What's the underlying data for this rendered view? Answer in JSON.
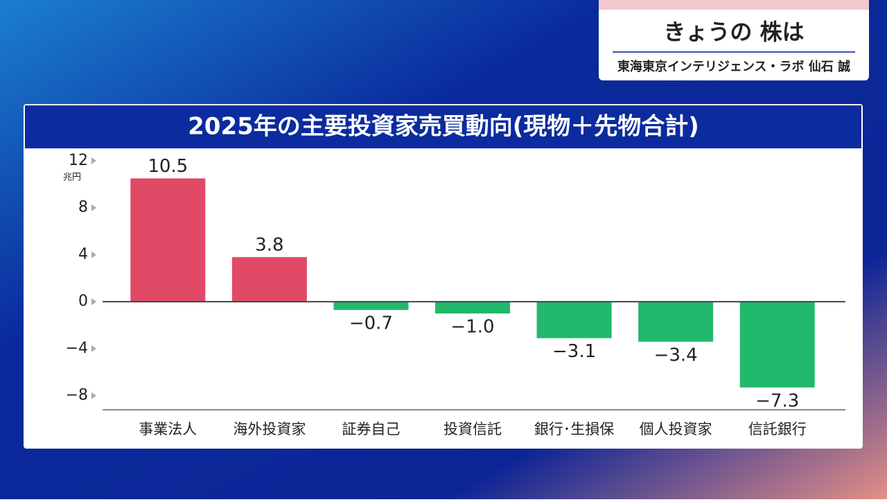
{
  "header": {
    "title": "きょうの 株は",
    "subtitle": "東海東京インテリジェンス・ラボ 仙石 誠"
  },
  "chart_data": {
    "type": "bar",
    "title": "2025年の主要投資家売買動向(現物＋先物合計)",
    "y_unit": "兆円",
    "categories": [
      "事業法人",
      "海外投資家",
      "証券自己",
      "投資信託",
      "銀行･生損保",
      "個人投資家",
      "信託銀行"
    ],
    "values": [
      10.5,
      3.8,
      -0.7,
      -1.0,
      -3.1,
      -3.4,
      -7.3
    ],
    "value_labels": [
      "10.5",
      "3.8",
      "−0.7",
      "−1.0",
      "−3.1",
      "−3.4",
      "−7.3"
    ],
    "positive_color": "#e14a66",
    "negative_color": "#22b96c",
    "ylim": [
      -9.2,
      13
    ],
    "yticks": [
      12,
      8,
      4,
      0,
      {
        "value": -4,
        "label": "−4"
      },
      {
        "value": -8,
        "label": "−8"
      }
    ]
  }
}
